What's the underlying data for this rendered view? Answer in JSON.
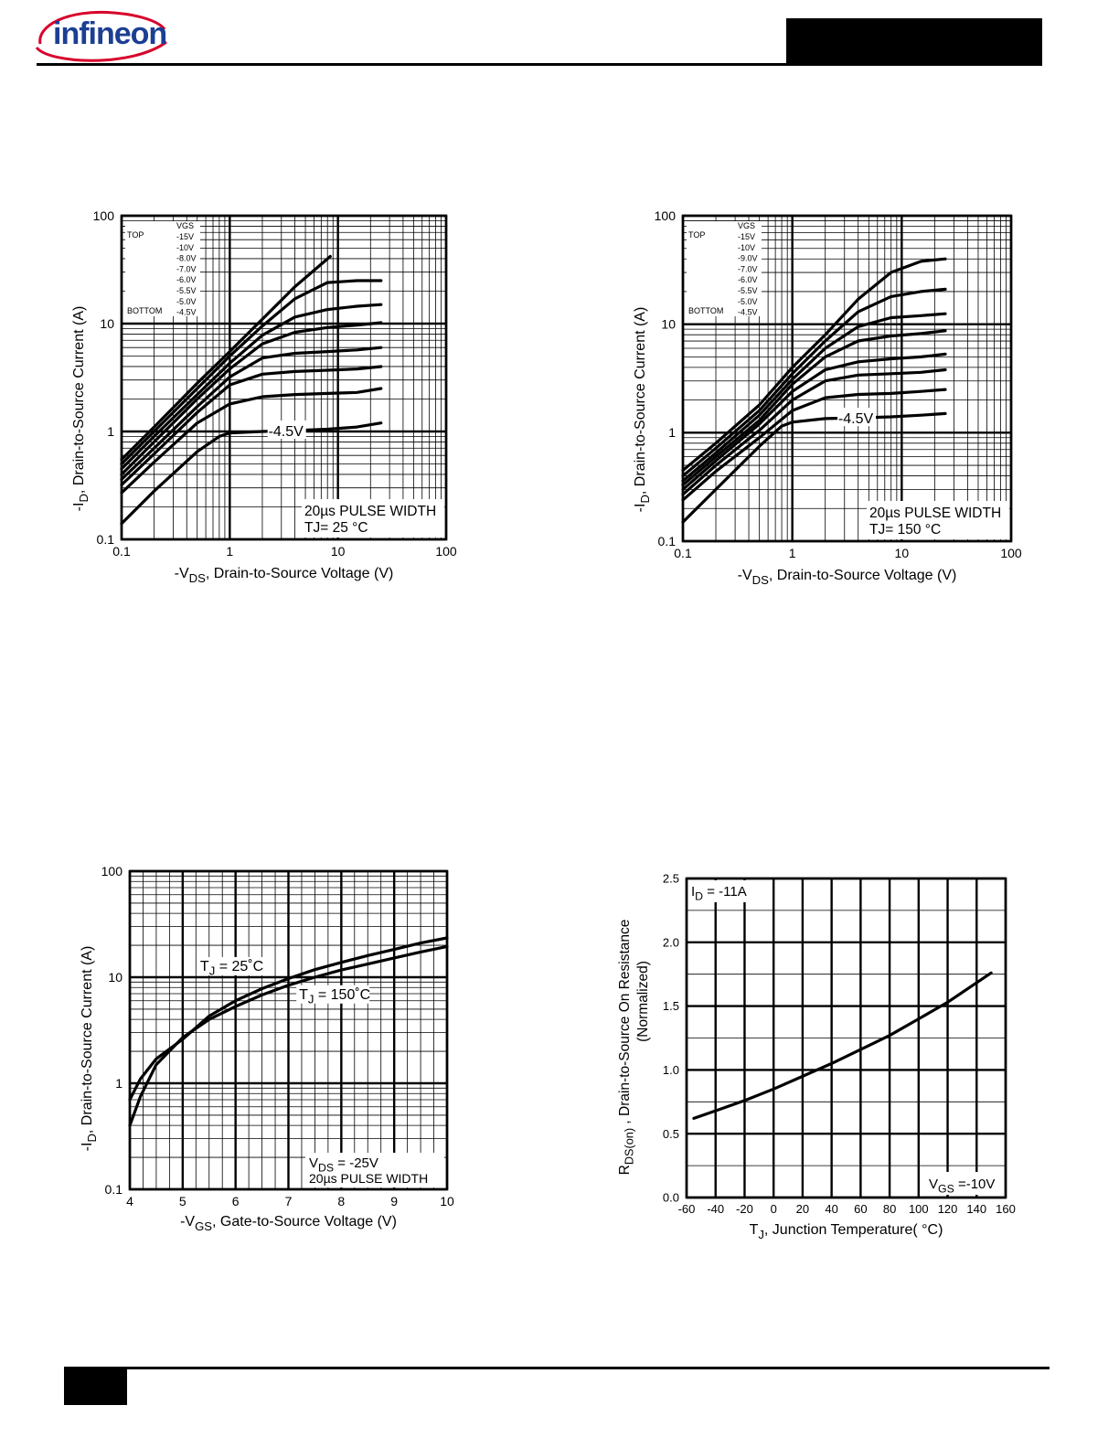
{
  "header": {
    "logo_text": "infineon"
  },
  "colors": {
    "logo": "#1c3f94",
    "ink": "#000000"
  },
  "charts": [
    {
      "id": "fig1",
      "chart_data": {
        "type": "line",
        "xscale": "log",
        "yscale": "log",
        "xlim": [
          0.1,
          100
        ],
        "ylim": [
          0.1,
          100
        ],
        "xticks": [
          "0.1",
          "1",
          "10",
          "100"
        ],
        "yticks": [
          "0.1",
          "1",
          "10",
          "100"
        ],
        "xlabel_prefix": "-V",
        "xlabel_sub": "DS",
        "xlabel_rest": ", Drain-to-Source Voltage (V)",
        "ylabel_prefix": "-I",
        "ylabel_sub": "D",
        "ylabel_rest": ", Drain-to-Source Current (A)",
        "legend": {
          "top": "TOP",
          "bottom": "BOTTOM",
          "header": "VGS",
          "entries": [
            "-15V",
            "-10V",
            "-8.0V",
            "-7.0V",
            "-6.0V",
            "-5.5V",
            "-5.0V",
            "-4.5V"
          ]
        },
        "annotation": "-4.5V",
        "note_line1": "20µs PULSE WIDTH",
        "note_line2": "TJ= 25 °C",
        "grid": true,
        "series": [
          {
            "name": "-15V",
            "x": [
              0.1,
              0.2,
              0.5,
              1,
              2,
              4,
              8.5
            ],
            "y": [
              0.55,
              1.1,
              2.8,
              5.5,
              11,
              22,
              42
            ]
          },
          {
            "name": "-10V",
            "x": [
              0.1,
              0.2,
              0.5,
              1,
              2,
              4,
              8,
              15,
              25
            ],
            "y": [
              0.5,
              1.0,
              2.5,
              5,
              9.5,
              17,
              24,
              25,
              25
            ]
          },
          {
            "name": "-8.0V",
            "x": [
              0.1,
              0.2,
              0.5,
              1,
              2,
              4,
              8,
              15,
              25
            ],
            "y": [
              0.45,
              0.9,
              2.2,
              4.3,
              7.8,
              11.5,
              13.5,
              14.5,
              15
            ]
          },
          {
            "name": "-7.0V",
            "x": [
              0.1,
              0.2,
              0.5,
              1,
              2,
              4,
              8,
              15,
              25
            ],
            "y": [
              0.4,
              0.8,
              2.0,
              3.8,
              6.5,
              8.3,
              9.2,
              9.7,
              10.2
            ]
          },
          {
            "name": "-6.0V",
            "x": [
              0.1,
              0.2,
              0.5,
              1,
              2,
              4,
              8,
              15,
              25
            ],
            "y": [
              0.36,
              0.7,
              1.7,
              3.2,
              4.8,
              5.3,
              5.5,
              5.7,
              6.0
            ]
          },
          {
            "name": "-5.5V",
            "x": [
              0.1,
              0.2,
              0.5,
              1,
              2,
              4,
              8,
              15,
              25
            ],
            "y": [
              0.32,
              0.62,
              1.5,
              2.7,
              3.4,
              3.6,
              3.7,
              3.8,
              4.0
            ]
          },
          {
            "name": "-5.0V",
            "x": [
              0.1,
              0.2,
              0.5,
              1,
              2,
              4,
              8,
              15,
              25
            ],
            "y": [
              0.27,
              0.52,
              1.2,
              1.8,
              2.1,
              2.2,
              2.25,
              2.3,
              2.5
            ]
          },
          {
            "name": "-4.5V",
            "x": [
              0.1,
              0.2,
              0.5,
              0.8,
              1,
              2,
              4,
              8,
              15,
              25
            ],
            "y": [
              0.14,
              0.28,
              0.65,
              0.9,
              0.97,
              1.0,
              1.02,
              1.05,
              1.1,
              1.2
            ]
          }
        ]
      }
    },
    {
      "id": "fig2",
      "chart_data": {
        "type": "line",
        "xscale": "log",
        "yscale": "log",
        "xlim": [
          0.1,
          100
        ],
        "ylim": [
          0.1,
          100
        ],
        "xticks": [
          "0.1",
          "1",
          "10",
          "100"
        ],
        "yticks": [
          "0.1",
          "1",
          "10",
          "100"
        ],
        "xlabel_prefix": "-V",
        "xlabel_sub": "DS",
        "xlabel_rest": ", Drain-to-Source Voltage (V)",
        "ylabel_prefix": "-I",
        "ylabel_sub": "D",
        "ylabel_rest": ", Drain-to-Source Current (A)",
        "legend": {
          "top": "TOP",
          "bottom": "BOTTOM",
          "header": "VGS",
          "entries": [
            "-15V",
            "-10V",
            "-9.0V",
            "-7.0V",
            "-6.0V",
            "-5.5V",
            "-5.0V",
            "-4.5V"
          ]
        },
        "annotation": "-4.5V",
        "note_line1": "20µs PULSE WIDTH",
        "note_line2": "TJ= 150 °C",
        "grid": true,
        "series": [
          {
            "name": "-15V",
            "x": [
              0.1,
              0.2,
              0.5,
              1,
              2,
              4,
              8,
              15,
              25
            ],
            "y": [
              0.45,
              0.8,
              1.8,
              4,
              8,
              17,
              30,
              38,
              40
            ]
          },
          {
            "name": "-10V",
            "x": [
              0.1,
              0.2,
              0.5,
              1,
              2,
              4,
              8,
              15,
              25
            ],
            "y": [
              0.4,
              0.72,
              1.6,
              3.5,
              7,
              13,
              18,
              20,
              21
            ]
          },
          {
            "name": "-9.0V",
            "x": [
              0.1,
              0.2,
              0.5,
              1,
              2,
              4,
              8,
              15,
              25
            ],
            "y": [
              0.36,
              0.65,
              1.45,
              3.1,
              6,
              9.5,
              11.5,
              12,
              12.5
            ]
          },
          {
            "name": "-7.0V",
            "x": [
              0.1,
              0.2,
              0.5,
              1,
              2,
              4,
              8,
              15,
              25
            ],
            "y": [
              0.33,
              0.6,
              1.3,
              2.8,
              5,
              7,
              7.8,
              8.2,
              8.7
            ]
          },
          {
            "name": "-6.0V",
            "x": [
              0.1,
              0.2,
              0.5,
              1,
              2,
              4,
              8,
              15,
              25
            ],
            "y": [
              0.3,
              0.55,
              1.2,
              2.4,
              3.8,
              4.5,
              4.8,
              5,
              5.3
            ]
          },
          {
            "name": "-5.5V",
            "x": [
              0.1,
              0.2,
              0.5,
              1,
              2,
              4,
              8,
              15,
              25
            ],
            "y": [
              0.27,
              0.5,
              1.05,
              2.0,
              3.0,
              3.4,
              3.5,
              3.6,
              3.8
            ]
          },
          {
            "name": "-5.0V",
            "x": [
              0.1,
              0.2,
              0.5,
              1,
              2,
              4,
              8,
              15,
              25
            ],
            "y": [
              0.24,
              0.44,
              0.9,
              1.6,
              2.1,
              2.25,
              2.3,
              2.4,
              2.5
            ]
          },
          {
            "name": "-4.5V",
            "x": [
              0.1,
              0.2,
              0.5,
              0.8,
              1,
              2,
              4,
              8,
              15,
              25
            ],
            "y": [
              0.15,
              0.3,
              0.75,
              1.15,
              1.25,
              1.35,
              1.37,
              1.4,
              1.45,
              1.5
            ]
          }
        ]
      }
    },
    {
      "id": "fig3",
      "chart_data": {
        "type": "line",
        "xscale": "linear",
        "yscale": "log",
        "xlim": [
          4,
          10
        ],
        "ylim": [
          0.1,
          100
        ],
        "xticks": [
          "4",
          "5",
          "6",
          "7",
          "8",
          "9",
          "10"
        ],
        "yticks": [
          "0.1",
          "1",
          "10",
          "100"
        ],
        "xlabel_prefix": "-V",
        "xlabel_sub": "GS",
        "xlabel_rest": ", Gate-to-Source Voltage (V)",
        "ylabel_prefix": "-I",
        "ylabel_sub": "D",
        "ylabel_rest": ", Drain-to-Source Current (A)",
        "label_25_prefix": "T",
        "label_25_sub": "J",
        "label_25_rest": " = 25˚C",
        "label_150_prefix": "T",
        "label_150_sub": "J",
        "label_150_rest": " = 150˚C",
        "note_line1_prefix": "V",
        "note_line1_sub": "DS",
        "note_line1_rest": " = -25V",
        "note_line2": "20µs PULSE WIDTH",
        "grid": true,
        "series": [
          {
            "name": "TJ = 25°C",
            "x": [
              4,
              4.2,
              4.5,
              5,
              5.5,
              6,
              6.5,
              7,
              7.5,
              8,
              8.5,
              9,
              9.5,
              10
            ],
            "y": [
              0.4,
              0.75,
              1.5,
              2.7,
              4.0,
              5.3,
              6.8,
              8.4,
              10,
              11.7,
              13.3,
              15.2,
              17.3,
              19.5
            ]
          },
          {
            "name": "TJ = 150°C",
            "x": [
              4,
              4.2,
              4.5,
              5,
              5.5,
              6,
              6.5,
              7,
              7.5,
              8,
              8.5,
              9,
              9.5,
              10
            ],
            "y": [
              0.7,
              1.1,
              1.7,
              2.6,
              4.3,
              6.0,
              7.8,
              9.7,
              11.8,
              13.8,
              16,
              18.3,
              21,
              23.5
            ]
          }
        ]
      }
    },
    {
      "id": "fig4",
      "chart_data": {
        "type": "line",
        "xscale": "linear",
        "yscale": "linear",
        "xlim": [
          -60,
          160
        ],
        "ylim": [
          0.0,
          2.5
        ],
        "xticks": [
          "-60",
          "-40",
          "-20",
          "0",
          "20",
          "40",
          "60",
          "80",
          "100",
          "120",
          "140",
          "160"
        ],
        "yticks": [
          "0.0",
          "0.5",
          "1.0",
          "1.5",
          "2.0",
          "2.5"
        ],
        "xlabel_prefix": "T",
        "xlabel_sub": "J",
        "xlabel_rest": ", Junction Temperature( °C)",
        "ylabel_prefix": "R",
        "ylabel_sub": "DS(on)",
        "ylabel_rest": " , Drain-to-Source On Resistance",
        "ylabel_line2": "(Normalized)",
        "label_id_prefix": "I",
        "label_id_sub": "D",
        "label_id_rest": " = -11A",
        "label_vgs_prefix": "V",
        "label_vgs_sub": "GS",
        "label_vgs_rest": " =-10V",
        "grid": true,
        "series": [
          {
            "name": "RDS(on)",
            "x": [
              -55,
              -40,
              -20,
              0,
              20,
              40,
              60,
              80,
              100,
              120,
              150
            ],
            "y": [
              0.62,
              0.68,
              0.76,
              0.85,
              0.95,
              1.05,
              1.16,
              1.27,
              1.4,
              1.53,
              1.76
            ]
          }
        ]
      }
    }
  ]
}
